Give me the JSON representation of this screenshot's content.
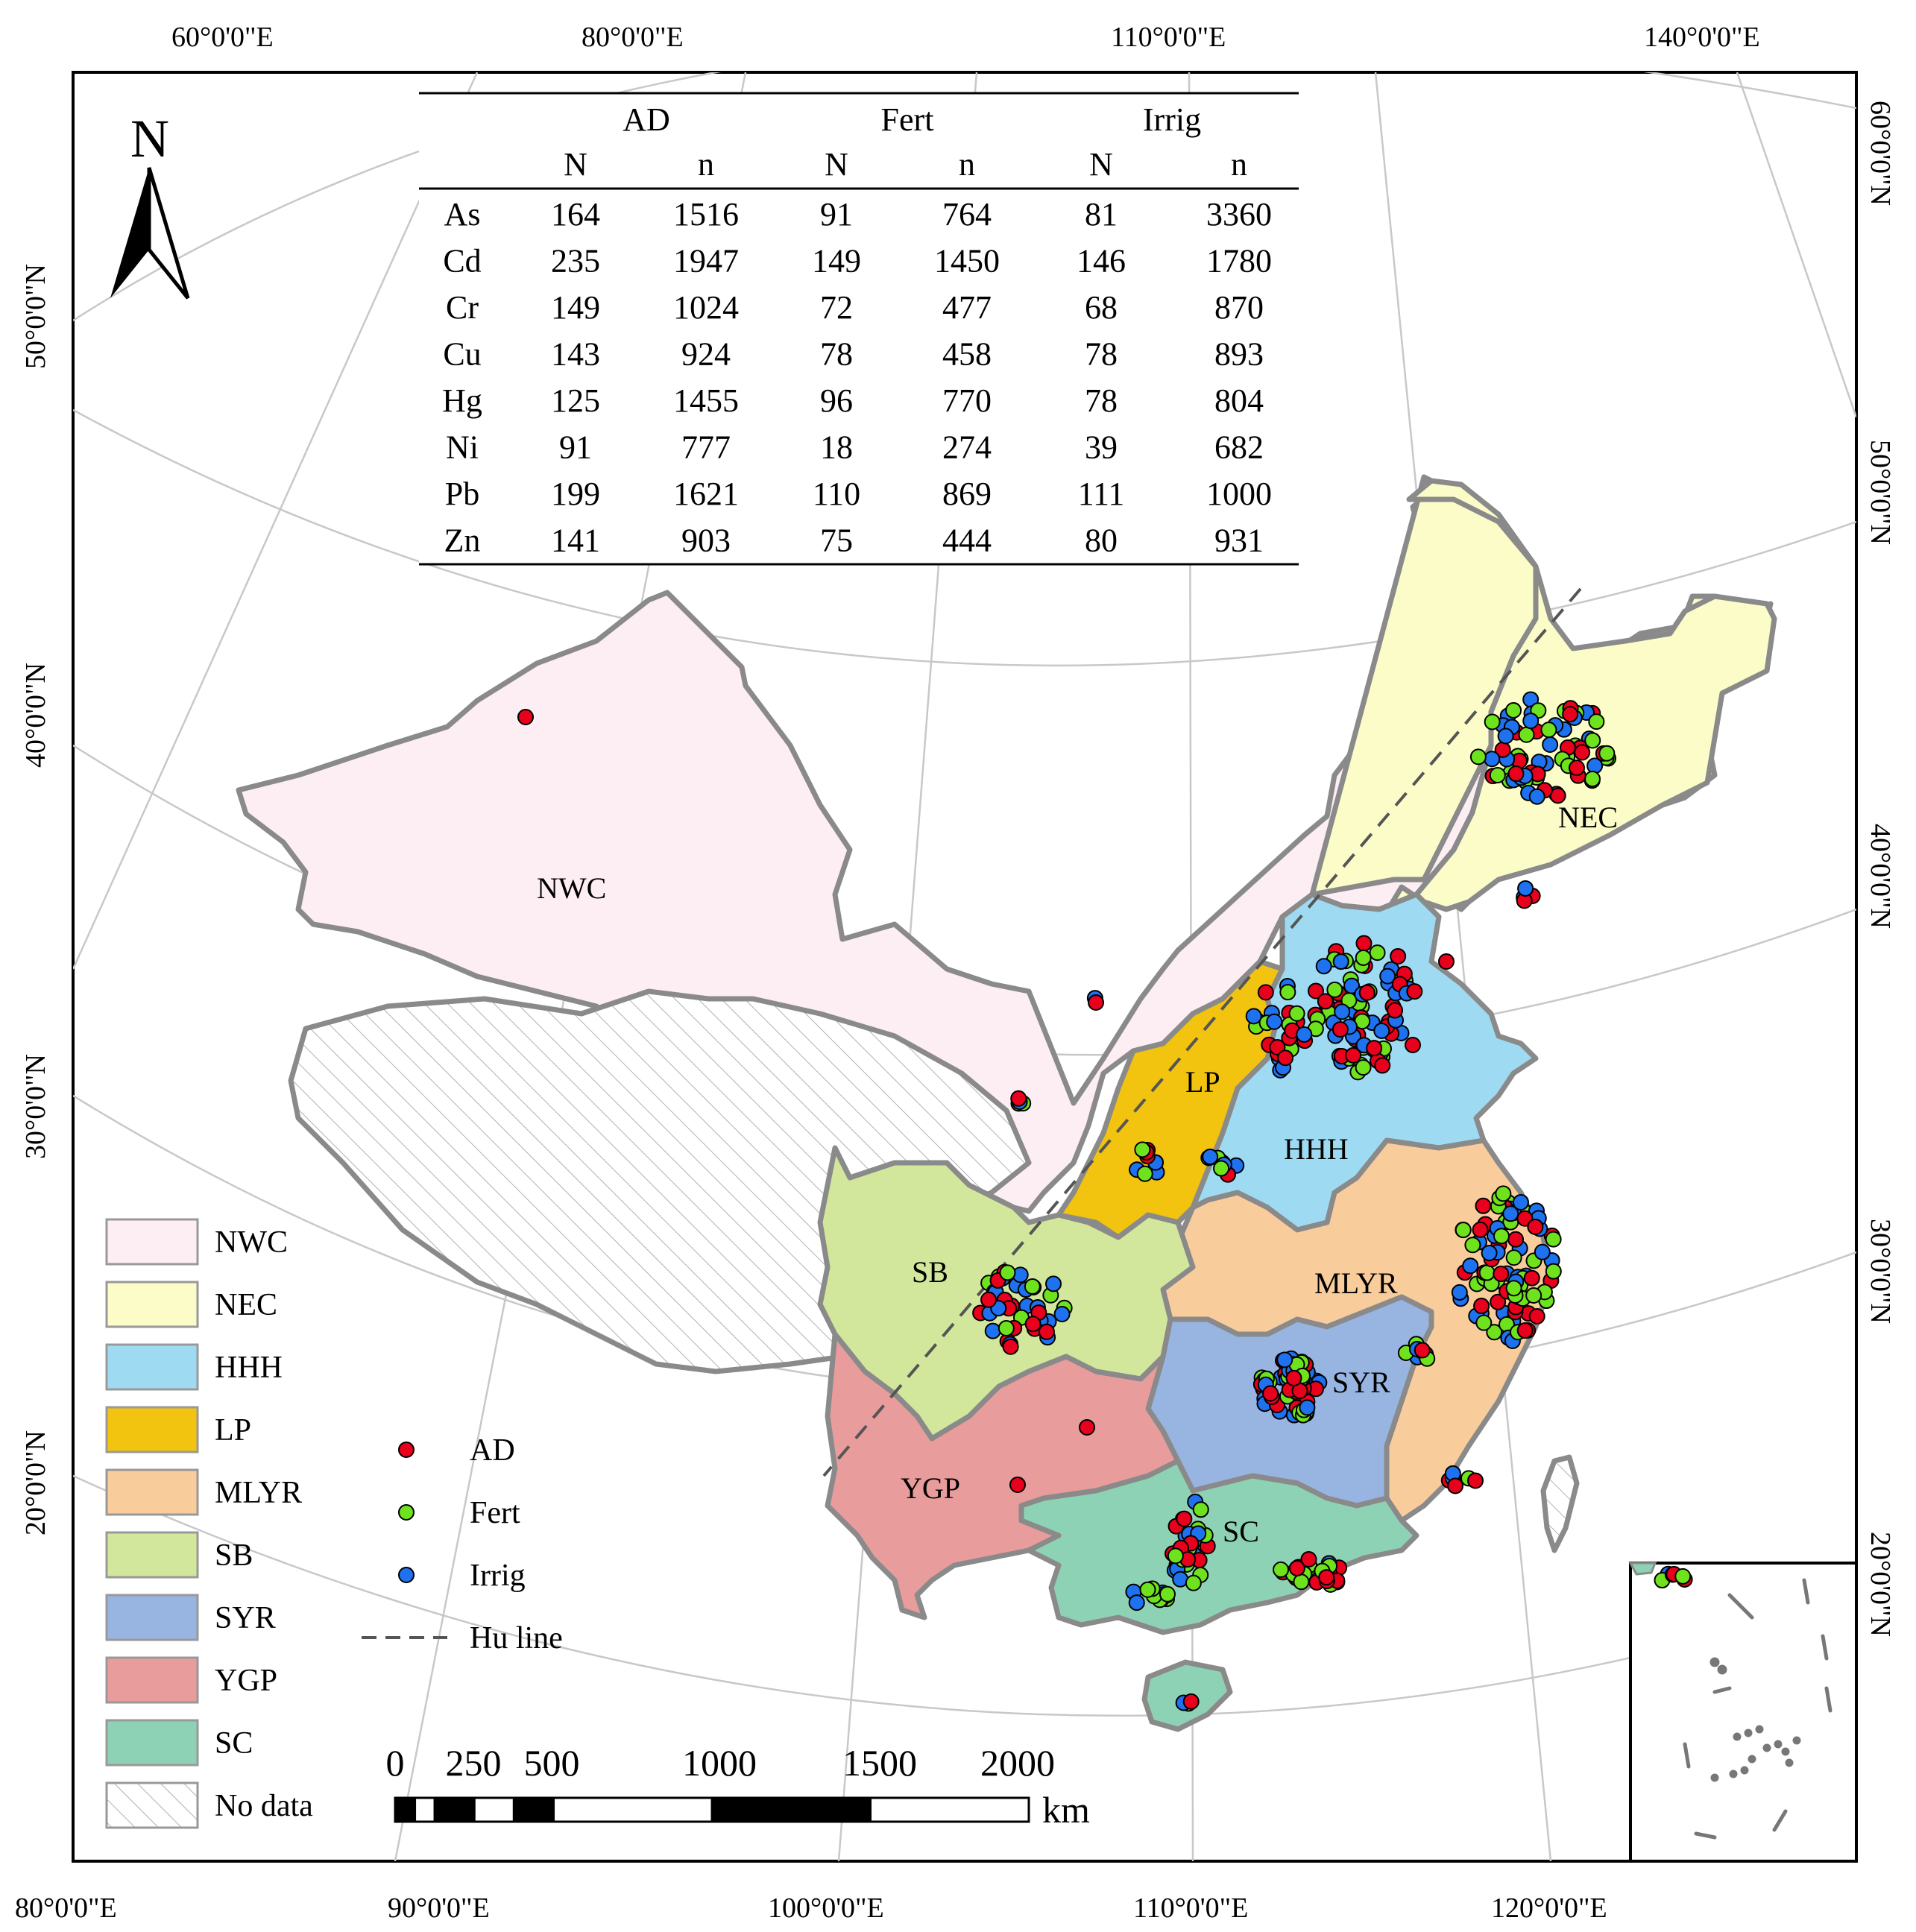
{
  "north_arrow": {
    "label": "N"
  },
  "graticule": {
    "top_labels": [
      "60°0'0\"E",
      "80°0'0\"E",
      "110°0'0\"E",
      "140°0'0\"E"
    ],
    "bottom_labels": [
      "80°0'0\"E",
      "90°0'0\"E",
      "100°0'0\"E",
      "110°0'0\"E",
      "120°0'0\"E"
    ],
    "left_labels": [
      "50°0'0\"N",
      "40°0'0\"N",
      "30°0'0\"N",
      "20°0'0\"N"
    ],
    "right_labels": [
      "60°0'0\"N",
      "50°0'0\"N",
      "40°0'0\"N",
      "30°0'0\"N",
      "20°0'0\"N"
    ]
  },
  "table": {
    "groups": [
      "AD",
      "Fert",
      "Irrig"
    ],
    "subheaders": [
      "N",
      "n",
      "N",
      "n",
      "N",
      "n"
    ],
    "rows": [
      {
        "metal": "As",
        "values": [
          "164",
          "1516",
          "91",
          "764",
          "81",
          "3360"
        ]
      },
      {
        "metal": "Cd",
        "values": [
          "235",
          "1947",
          "149",
          "1450",
          "146",
          "1780"
        ]
      },
      {
        "metal": "Cr",
        "values": [
          "149",
          "1024",
          "72",
          "477",
          "68",
          "870"
        ]
      },
      {
        "metal": "Cu",
        "values": [
          "143",
          "924",
          "78",
          "458",
          "78",
          "893"
        ]
      },
      {
        "metal": "Hg",
        "values": [
          "125",
          "1455",
          "96",
          "770",
          "78",
          "804"
        ]
      },
      {
        "metal": "Ni",
        "values": [
          "91",
          "777",
          "18",
          "274",
          "39",
          "682"
        ]
      },
      {
        "metal": "Pb",
        "values": [
          "199",
          "1621",
          "110",
          "869",
          "111",
          "1000"
        ]
      },
      {
        "metal": "Zn",
        "values": [
          "141",
          "903",
          "75",
          "444",
          "80",
          "931"
        ]
      }
    ]
  },
  "regions": [
    {
      "key": "NWC",
      "label": "NWC",
      "color": "#fdeef4"
    },
    {
      "key": "NEC",
      "label": "NEC",
      "color": "#fbfcc8"
    },
    {
      "key": "HHH",
      "label": "HHH",
      "color": "#9edbf2"
    },
    {
      "key": "LP",
      "label": "LP",
      "color": "#f2c30f"
    },
    {
      "key": "MLYR",
      "label": "MLYR",
      "color": "#f9cc9c"
    },
    {
      "key": "SB",
      "label": "SB",
      "color": "#d2e69c"
    },
    {
      "key": "SYR",
      "label": "SYR",
      "color": "#98b4e0"
    },
    {
      "key": "YGP",
      "label": "YGP",
      "color": "#e89c9c"
    },
    {
      "key": "SC",
      "label": "SC",
      "color": "#8ed2b6"
    }
  ],
  "region_legend": [
    {
      "label": "NWC",
      "color": "#fdeef4"
    },
    {
      "label": "NEC",
      "color": "#fbfcc8"
    },
    {
      "label": "HHH",
      "color": "#9edbf2"
    },
    {
      "label": "LP",
      "color": "#f2c30f"
    },
    {
      "label": "MLYR",
      "color": "#f9cc9c"
    },
    {
      "label": "SB",
      "color": "#d2e69c"
    },
    {
      "label": "SYR",
      "color": "#98b4e0"
    },
    {
      "label": "YGP",
      "color": "#e89c9c"
    },
    {
      "label": "SC",
      "color": "#8ed2b6"
    },
    {
      "label": "No data",
      "color": "hatch"
    }
  ],
  "point_legend": [
    {
      "label": "AD",
      "color": "#e8001c"
    },
    {
      "label": "Fert",
      "color": "#6fe21e"
    },
    {
      "label": "Irrig",
      "color": "#1e72f0"
    },
    {
      "label": "Hu line",
      "color": "line"
    }
  ],
  "scale_bar": {
    "ticks": [
      "0",
      "250",
      "500",
      "1000",
      "1500",
      "2000"
    ],
    "unit": "km"
  }
}
